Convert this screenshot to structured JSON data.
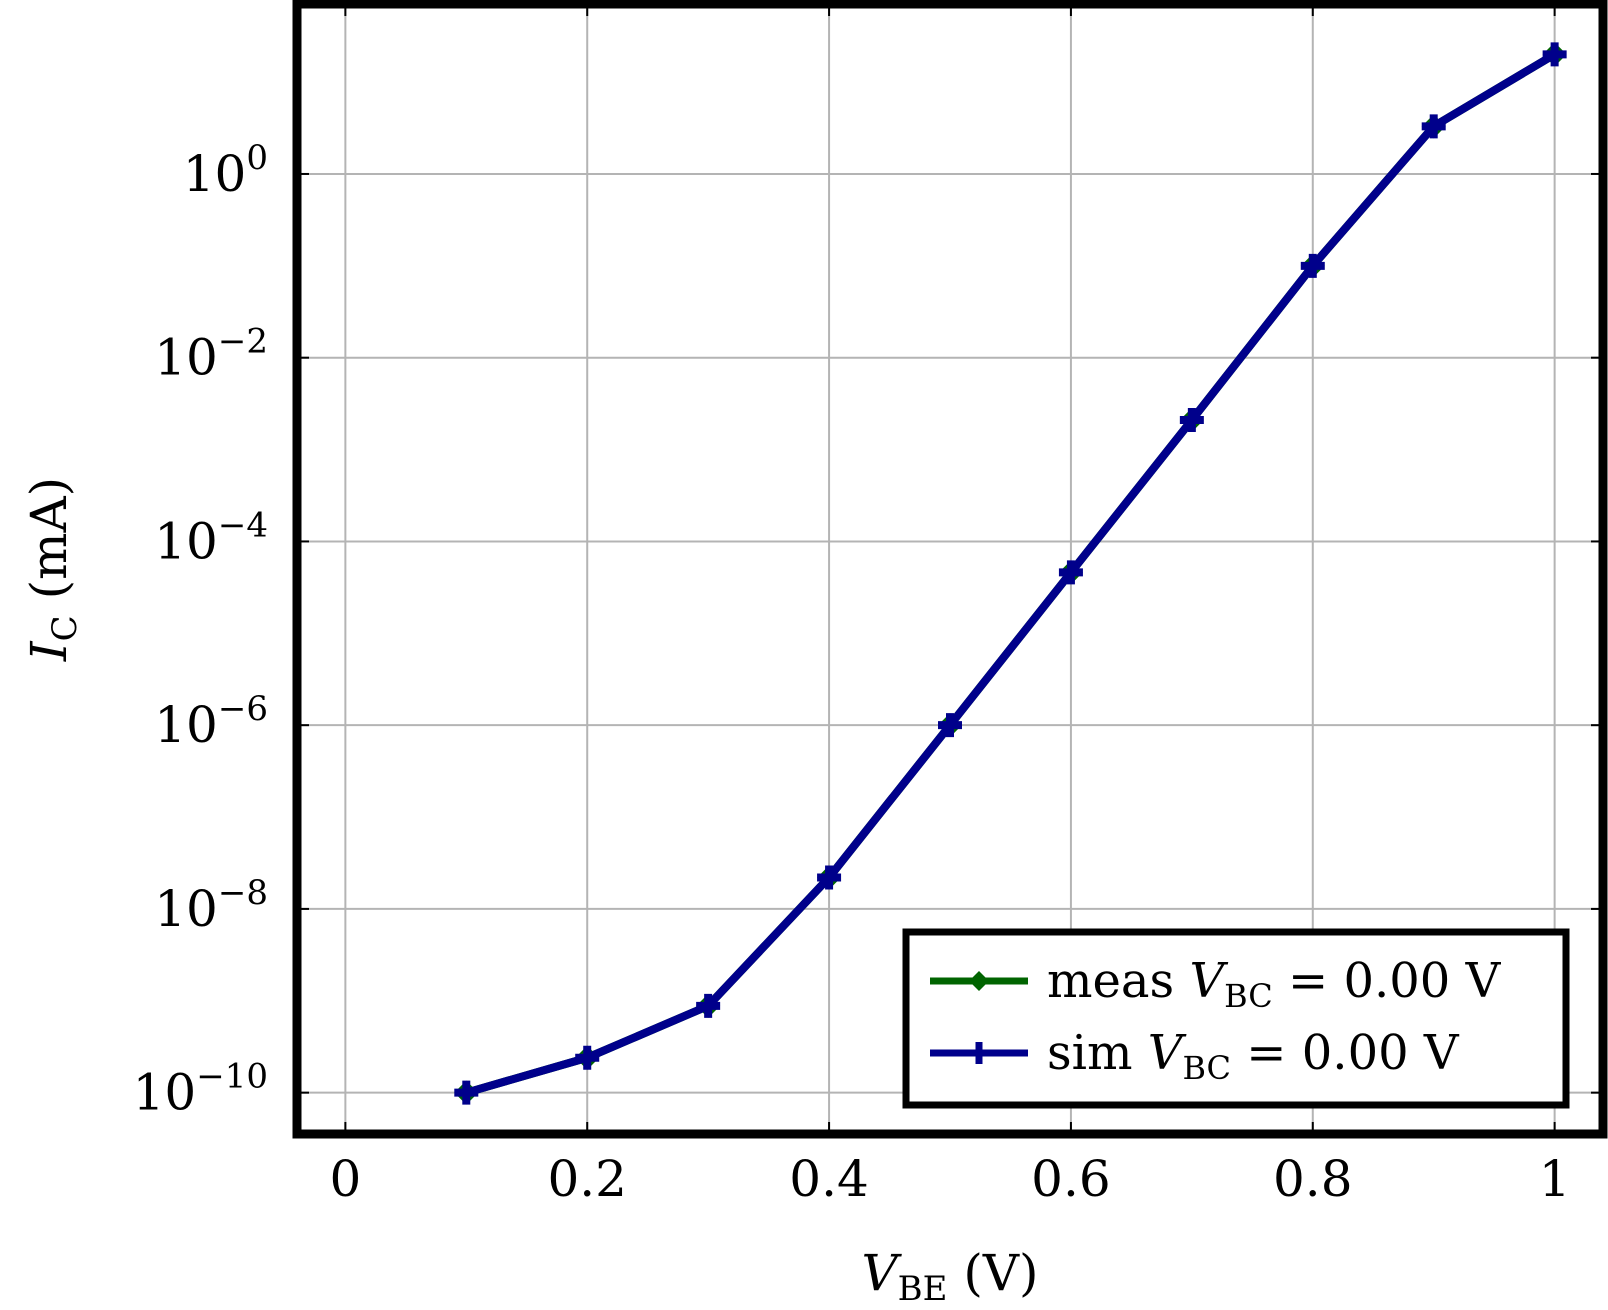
{
  "chart_data": {
    "type": "line",
    "yscale": "log",
    "xlim": [
      -0.04,
      1.04
    ],
    "ylog_range": [
      -10.45,
      1.85
    ],
    "xticks": [
      0,
      0.2,
      0.4,
      0.6,
      0.8,
      1
    ],
    "xtick_labels": [
      "0",
      "0.2",
      "0.4",
      "0.6",
      "0.8",
      "1"
    ],
    "yticks_exp": [
      -10,
      -8,
      -6,
      -4,
      -2,
      0
    ],
    "ytick_base": "10",
    "ytick_exp_labels": [
      "−10",
      "−8",
      "−6",
      "−4",
      "−2",
      "0"
    ],
    "xlabel": {
      "main": "V",
      "sub": "BE",
      "unit": " (V)"
    },
    "ylabel": {
      "main": "I",
      "sub": "C",
      "unit": " (mA)"
    },
    "grid": true,
    "legend_position": "bottom-right",
    "x": [
      0.1,
      0.2,
      0.3,
      0.4,
      0.5,
      0.6,
      0.7,
      0.8,
      0.9,
      1.0
    ],
    "series": [
      {
        "name": "meas",
        "legend": {
          "prefix": "meas ",
          "var": "V",
          "sub": "BC",
          "rest": " = 0.00 V"
        },
        "color": "#006400",
        "marker": "diamond",
        "values": [
          1e-10,
          2.4e-10,
          8.8e-10,
          2.2e-08,
          1e-06,
          4.6e-05,
          0.0021,
          0.1,
          3.3,
          20
        ]
      },
      {
        "name": "sim",
        "legend": {
          "prefix": "sim ",
          "var": "V",
          "sub": "BC",
          "rest": " = 0.00 V"
        },
        "color": "#00008b",
        "marker": "plus",
        "values": [
          1e-10,
          2.4e-10,
          8.8e-10,
          2.2e-08,
          1e-06,
          4.6e-05,
          0.0021,
          0.1,
          3.3,
          20
        ]
      }
    ]
  }
}
